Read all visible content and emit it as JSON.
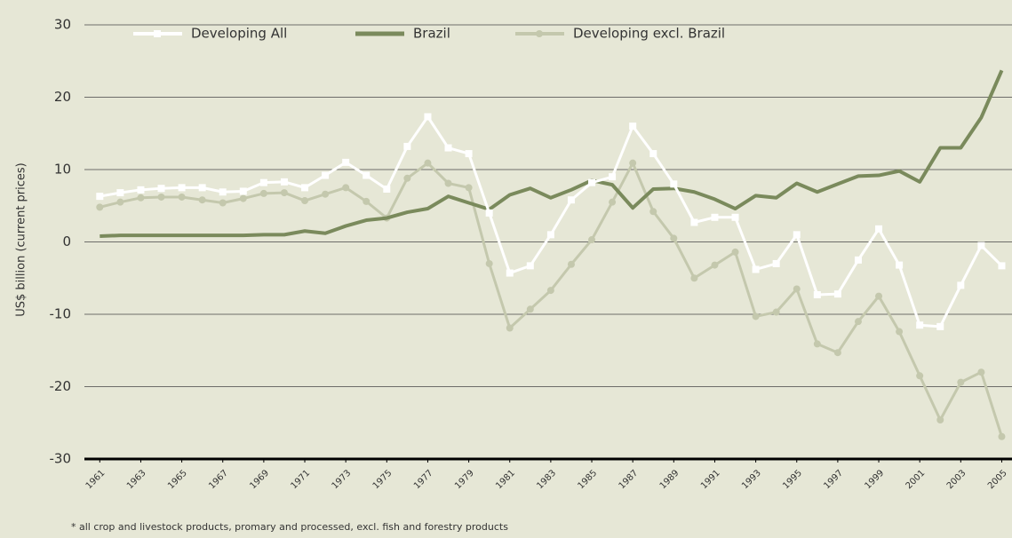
{
  "chart_data": {
    "type": "line",
    "y_label": "US$ billion (current prices)",
    "footnote": "* all crop and livestock products, promary and processed, excl. fish and forestry products",
    "x": [
      1961,
      1962,
      1963,
      1964,
      1965,
      1966,
      1967,
      1968,
      1969,
      1970,
      1971,
      1972,
      1973,
      1974,
      1975,
      1976,
      1977,
      1978,
      1979,
      1980,
      1981,
      1982,
      1983,
      1984,
      1985,
      1986,
      1987,
      1988,
      1989,
      1990,
      1991,
      1992,
      1993,
      1994,
      1995,
      1996,
      1997,
      1998,
      1999,
      2000,
      2001,
      2002,
      2003,
      2004,
      2005
    ],
    "xlim": [
      1960.25,
      2005.5
    ],
    "xticks": [
      1961,
      1963,
      1965,
      1967,
      1969,
      1971,
      1973,
      1975,
      1977,
      1979,
      1981,
      1983,
      1985,
      1987,
      1989,
      1991,
      1993,
      1995,
      1997,
      1999,
      2001,
      2003,
      2005
    ],
    "ylim": [
      -30,
      30
    ],
    "yticks": [
      -30,
      -20,
      -10,
      0,
      10,
      20,
      30
    ],
    "grid": true,
    "legend": "top",
    "series": [
      {
        "name": "Developing All",
        "color": "#ffffff",
        "marker": "square",
        "values": [
          6.3,
          6.8,
          7.2,
          7.4,
          7.5,
          7.5,
          6.9,
          7.0,
          8.2,
          8.3,
          7.5,
          9.2,
          11.0,
          9.2,
          7.3,
          13.2,
          17.3,
          13.0,
          12.2,
          4.0,
          -4.3,
          -3.3,
          1.0,
          5.8,
          8.2,
          9.0,
          16.0,
          12.2,
          8.0,
          2.7,
          3.4,
          3.4,
          -3.8,
          -3.0,
          1.0,
          -7.3,
          -7.2,
          -2.5,
          1.8,
          -3.2,
          -11.5,
          -11.7,
          -6.0,
          -0.5,
          -3.3
        ]
      },
      {
        "name": "Brazil",
        "color": "#7a8a5c",
        "marker": null,
        "values": [
          0.8,
          0.9,
          0.9,
          0.9,
          0.9,
          0.9,
          0.9,
          0.9,
          1.0,
          1.0,
          1.5,
          1.2,
          2.2,
          3.0,
          3.3,
          4.1,
          4.6,
          6.3,
          5.4,
          4.5,
          6.5,
          7.4,
          6.1,
          7.2,
          8.5,
          7.9,
          4.7,
          7.3,
          7.4,
          6.9,
          5.9,
          4.6,
          6.4,
          6.1,
          8.1,
          6.9,
          8.0,
          9.1,
          9.2,
          9.8,
          8.3,
          13.0,
          13.0,
          17.2,
          23.7
        ]
      },
      {
        "name": "Developing excl. Brazil",
        "color": "#c4c8ad",
        "marker": "circle",
        "values": [
          4.8,
          5.5,
          6.1,
          6.2,
          6.2,
          5.8,
          5.4,
          6.0,
          6.7,
          6.8,
          5.7,
          6.6,
          7.5,
          5.6,
          3.3,
          8.8,
          10.9,
          8.1,
          7.5,
          -3.0,
          -11.9,
          -9.3,
          -6.7,
          -3.1,
          0.3,
          5.5,
          10.9,
          4.2,
          0.5,
          -5.0,
          -3.2,
          -1.4,
          -10.3,
          -9.7,
          -6.5,
          -14.1,
          -15.3,
          -11.0,
          -7.5,
          -12.4,
          -18.5,
          -24.6,
          -19.4,
          -18.0,
          -26.9
        ]
      }
    ]
  }
}
